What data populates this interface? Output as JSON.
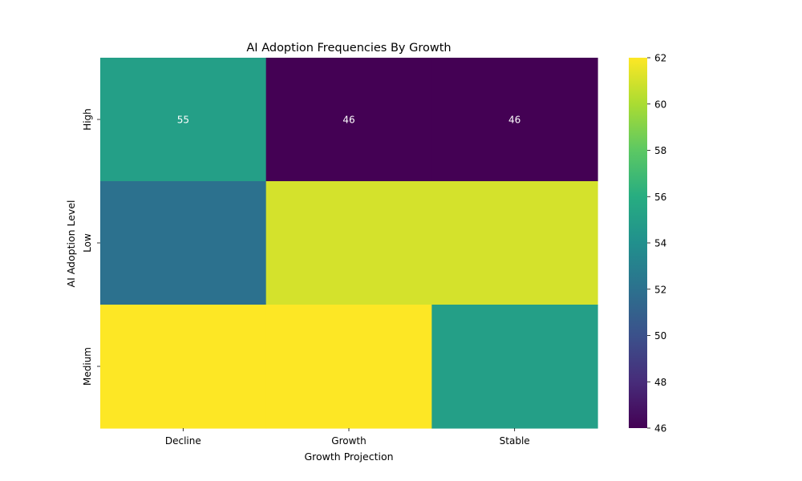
{
  "chart_data": {
    "type": "heatmap",
    "title": "AI Adoption Frequencies By Growth",
    "xlabel": "Growth Projection",
    "ylabel": "AI Adoption Level",
    "x_categories": [
      "Decline",
      "Growth",
      "Stable"
    ],
    "y_categories": [
      "High",
      "Low",
      "Medium"
    ],
    "values": [
      [
        55,
        46,
        46
      ],
      [
        52,
        61,
        61
      ],
      [
        62,
        62,
        55
      ]
    ],
    "annotations": [
      [
        "55",
        "46",
        "46"
      ],
      [
        "",
        "",
        ""
      ],
      [
        "",
        "",
        ""
      ]
    ],
    "colormap": "viridis",
    "colorbar": {
      "min": 46,
      "max": 62,
      "ticks": [
        "46",
        "48",
        "50",
        "52",
        "54",
        "56",
        "58",
        "60",
        "62"
      ]
    },
    "annotation_color": "#ffffff"
  }
}
